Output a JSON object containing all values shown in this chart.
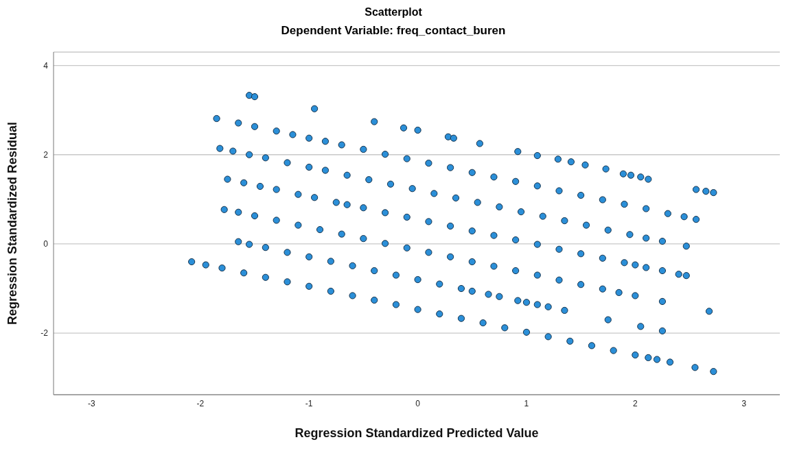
{
  "chart_data": {
    "type": "scatter",
    "title": "Scatterplot",
    "subtitle": "Dependent Variable: freq_contact_buren",
    "xlabel": "Regression Standardized Predicted Value",
    "ylabel": "Regression Standardized Residual",
    "xlim": [
      -3.35,
      3.33
    ],
    "xticks": [
      -3,
      -2,
      -1,
      0,
      1,
      2,
      3
    ],
    "ylim": [
      -3.38,
      4.3
    ],
    "yticks": [
      -2,
      0,
      2,
      4
    ],
    "grid": "y",
    "legend": false,
    "marker": "circle",
    "series": [
      {
        "color": "#2b8fd8",
        "x": [
          -2.08,
          -1.95,
          -1.8,
          -1.6,
          -1.4,
          -1.2,
          -1.0,
          -0.8,
          -0.6,
          -0.4,
          -0.2,
          0,
          0.2,
          0.4,
          0.6,
          0.8,
          1.0,
          1.2,
          1.4,
          1.6,
          1.8,
          2.0,
          2.12,
          2.2,
          2.32,
          2.55,
          2.72,
          -1.65,
          -1.55,
          -1.4,
          -1.2,
          -1.0,
          -0.8,
          -0.6,
          -0.4,
          -0.2,
          0,
          0.2,
          0.4,
          0.5,
          0.65,
          0.75,
          0.92,
          1.0,
          1.1,
          1.2,
          1.35,
          1.75,
          2.05,
          2.25,
          -1.78,
          -1.65,
          -1.5,
          -1.3,
          -1.1,
          -0.9,
          -0.7,
          -0.5,
          -0.3,
          -0.1,
          0.1,
          0.3,
          0.5,
          0.7,
          0.9,
          1.1,
          1.3,
          1.5,
          1.7,
          1.85,
          2.0,
          2.25,
          2.68,
          -1.75,
          -1.6,
          -1.45,
          -1.3,
          -1.1,
          -0.95,
          -0.75,
          -0.65,
          -0.5,
          -0.3,
          -0.1,
          0.1,
          0.3,
          0.5,
          0.7,
          0.9,
          1.1,
          1.3,
          1.5,
          1.7,
          1.9,
          2.0,
          2.1,
          2.25,
          2.4,
          2.47,
          -1.82,
          -1.7,
          -1.55,
          -1.4,
          -1.2,
          -1.0,
          -0.85,
          -0.65,
          -0.45,
          -0.25,
          -0.05,
          0.15,
          0.35,
          0.55,
          0.75,
          0.95,
          1.15,
          1.35,
          1.55,
          1.75,
          1.95,
          2.1,
          2.25,
          2.47,
          -1.85,
          -1.65,
          -1.5,
          -1.3,
          -1.15,
          -1.0,
          -0.85,
          -0.7,
          -0.5,
          -0.3,
          -0.1,
          0.1,
          0.3,
          0.5,
          0.7,
          0.9,
          1.1,
          1.3,
          1.5,
          1.7,
          1.9,
          2.1,
          2.3,
          2.45,
          2.56,
          -1.55,
          -1.5,
          -0.95,
          -0.4,
          -0.13,
          0.0,
          0.28,
          0.33,
          0.57,
          0.92,
          1.1,
          1.29,
          1.41,
          1.54,
          1.73,
          1.89,
          1.96,
          2.05,
          2.12,
          2.56,
          2.65,
          2.72
        ],
        "values": [
          -0.4,
          -0.47,
          -0.54,
          -0.65,
          -0.75,
          -0.85,
          -0.95,
          -1.06,
          -1.16,
          -1.26,
          -1.36,
          -1.47,
          -1.57,
          -1.67,
          -1.77,
          -1.88,
          -1.98,
          -2.08,
          -2.18,
          -2.28,
          -2.39,
          -2.49,
          -2.55,
          -2.59,
          -2.65,
          -2.77,
          -2.86,
          0.05,
          -0.01,
          -0.08,
          -0.19,
          -0.29,
          -0.39,
          -0.49,
          -0.6,
          -0.7,
          -0.8,
          -0.9,
          -1.0,
          -1.06,
          -1.13,
          -1.18,
          -1.27,
          -1.31,
          -1.36,
          -1.41,
          -1.49,
          -1.7,
          -1.85,
          -1.95,
          0.77,
          0.71,
          0.63,
          0.53,
          0.42,
          0.32,
          0.22,
          0.12,
          0.01,
          -0.09,
          -0.19,
          -0.29,
          -0.4,
          -0.5,
          -0.6,
          -0.7,
          -0.81,
          -0.91,
          -1.01,
          -1.09,
          -1.16,
          -1.29,
          -1.51,
          1.45,
          1.37,
          1.29,
          1.22,
          1.11,
          1.04,
          0.93,
          0.88,
          0.81,
          0.7,
          0.6,
          0.5,
          0.4,
          0.29,
          0.19,
          0.09,
          -0.01,
          -0.12,
          -0.22,
          -0.32,
          -0.42,
          -0.47,
          -0.53,
          -0.6,
          -0.68,
          -0.71,
          2.14,
          2.08,
          2.0,
          1.93,
          1.82,
          1.72,
          1.65,
          1.54,
          1.44,
          1.34,
          1.24,
          1.13,
          1.03,
          0.93,
          0.83,
          0.72,
          0.62,
          0.52,
          0.42,
          0.31,
          0.21,
          0.13,
          0.06,
          -0.05,
          2.81,
          2.71,
          2.63,
          2.53,
          2.45,
          2.37,
          2.3,
          2.22,
          2.12,
          2.01,
          1.91,
          1.81,
          1.71,
          1.6,
          1.5,
          1.4,
          1.3,
          1.19,
          1.09,
          0.99,
          0.89,
          0.79,
          0.68,
          0.61,
          0.55,
          3.33,
          3.3,
          3.03,
          2.74,
          2.6,
          2.55,
          2.4,
          2.37,
          2.25,
          2.07,
          1.98,
          1.9,
          1.84,
          1.77,
          1.68,
          1.57,
          1.54,
          1.5,
          1.45,
          1.22,
          1.18,
          1.15
        ]
      }
    ]
  }
}
